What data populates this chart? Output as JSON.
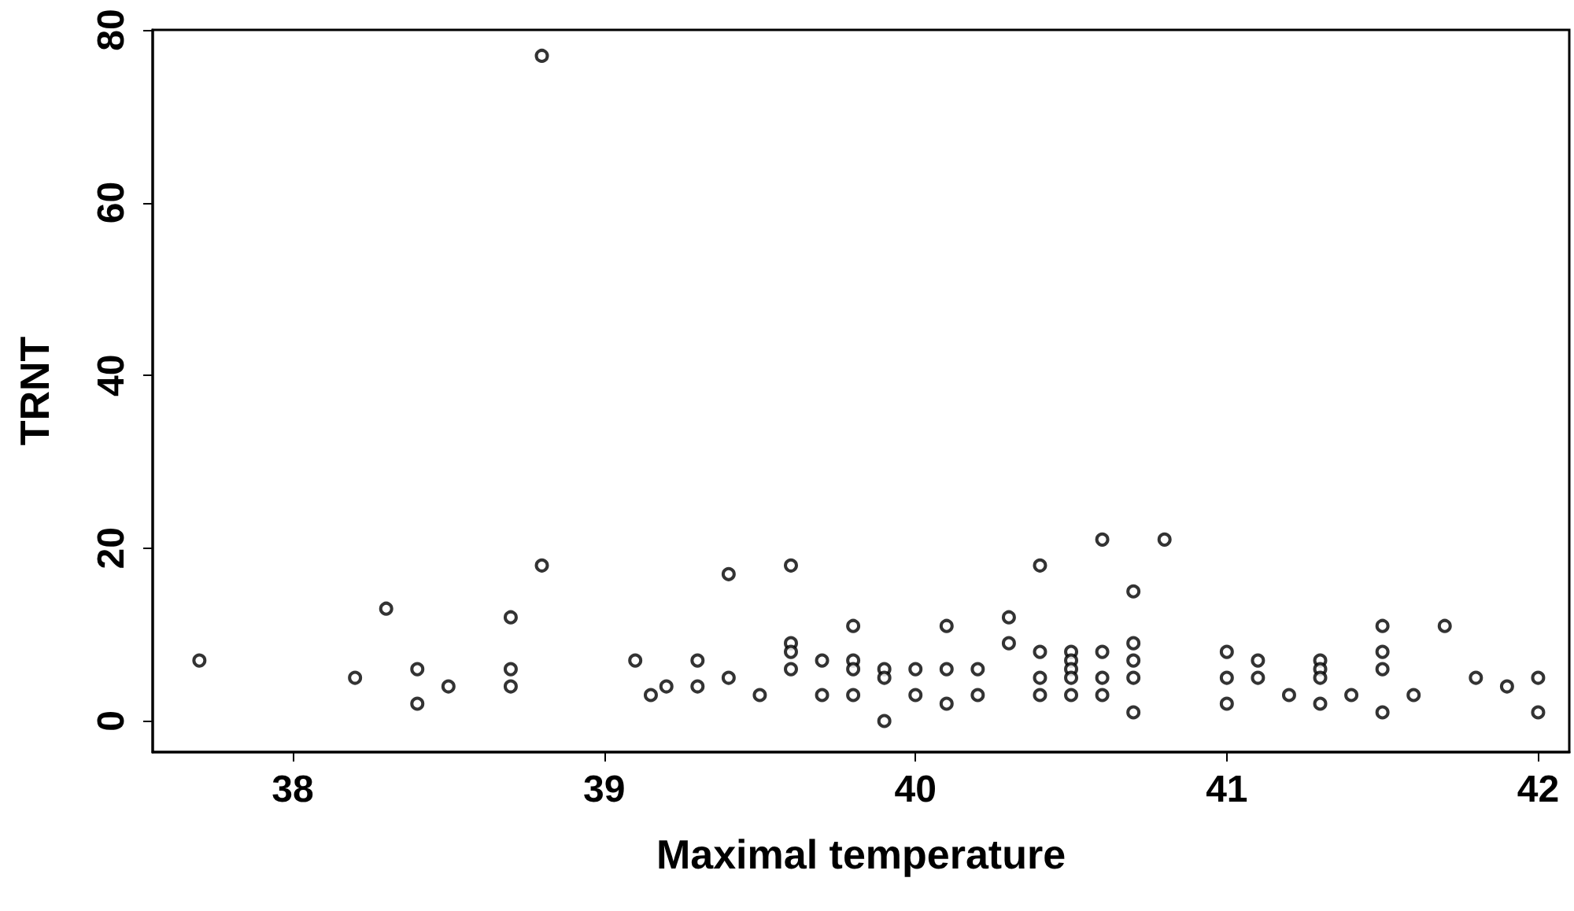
{
  "chart_data": {
    "type": "scatter",
    "xlabel": "Maximal temperature",
    "ylabel": "TRNT",
    "marker": "circle",
    "grid": false,
    "xlim": [
      37.55,
      42.1
    ],
    "xticks": [
      38,
      39,
      40,
      41,
      42
    ],
    "ylim": [
      -3.6,
      80
    ],
    "yticks": [
      0,
      20,
      40,
      60,
      80
    ],
    "series": [
      {
        "color": "#000000",
        "x": [
          37.7,
          38.2,
          38.3,
          38.4,
          38.4,
          38.5,
          38.7,
          38.7,
          38.7,
          38.8,
          38.8,
          39.1,
          39.15,
          39.2,
          39.3,
          39.3,
          39.4,
          39.4,
          39.5,
          39.6,
          39.6,
          39.6,
          39.6,
          39.7,
          39.7,
          39.8,
          39.8,
          39.8,
          39.8,
          39.9,
          39.9,
          39.9,
          40,
          40,
          40.1,
          40.1,
          40.1,
          40.2,
          40.2,
          40.3,
          40.3,
          40.4,
          40.4,
          40.4,
          40.4,
          40.5,
          40.5,
          40.5,
          40.5,
          40.5,
          40.6,
          40.6,
          40.6,
          40.6,
          40.7,
          40.7,
          40.7,
          40.7,
          40.7,
          40.8,
          41,
          41,
          41,
          41.1,
          41.1,
          41.2,
          41.3,
          41.3,
          41.3,
          41.3,
          41.4,
          41.5,
          41.5,
          41.5,
          41.5,
          41.6,
          41.7,
          41.8,
          41.9,
          42,
          42
        ],
        "values": [
          7,
          5,
          13,
          6,
          2,
          4,
          12,
          6,
          4,
          77,
          18,
          7,
          3,
          4,
          7,
          4,
          17,
          5,
          3,
          18,
          9,
          8,
          6,
          7,
          3,
          11,
          7,
          6,
          3,
          6,
          5,
          0,
          6,
          3,
          11,
          6,
          2,
          6,
          3,
          12,
          9,
          18,
          8,
          5,
          3,
          8,
          7,
          6,
          5,
          3,
          21,
          8,
          5,
          3,
          15,
          9,
          7,
          5,
          1,
          21,
          8,
          5,
          2,
          7,
          5,
          3,
          7,
          6,
          5,
          2,
          3,
          11,
          8,
          6,
          1,
          3,
          11,
          5,
          4,
          5,
          1
        ]
      }
    ]
  }
}
